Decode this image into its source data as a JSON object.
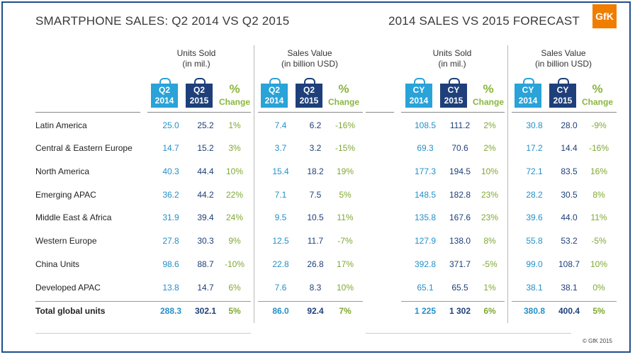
{
  "titles": {
    "left": "SMARTPHONE SALES: Q2 2014 VS Q2 2015",
    "right": "2014 SALES VS 2015 FORECAST"
  },
  "logo": "GfK",
  "copyright": "© GfK 2015",
  "groups": [
    {
      "line1": "Units Sold",
      "line2": "(in mil.)"
    },
    {
      "line1": "Sales Value",
      "line2": "(in billion USD)"
    },
    {
      "line1": "Units Sold",
      "line2": "(in mil.)"
    },
    {
      "line1": "Sales Value",
      "line2": "(in billion USD)"
    }
  ],
  "bags": [
    {
      "top": "Q2",
      "bottom": "2014"
    },
    {
      "top": "Q2",
      "bottom": "2015"
    },
    {
      "top": "Q2",
      "bottom": "2014"
    },
    {
      "top": "Q2",
      "bottom": "2015"
    },
    {
      "top": "CY",
      "bottom": "2014"
    },
    {
      "top": "CY",
      "bottom": "2015"
    },
    {
      "top": "CY",
      "bottom": "2014"
    },
    {
      "top": "CY",
      "bottom": "2015"
    }
  ],
  "pct_header": {
    "symbol": "%",
    "label": "Change"
  },
  "colors": {
    "light_blue": "#29a3d8",
    "dark_blue": "#1e3f7a",
    "green": "#8ab63f",
    "border": "#1f4e8c",
    "logo": "#f07d00"
  },
  "chart_data": {
    "type": "table",
    "title": "SMARTPHONE SALES: Q2 2014 VS Q2 2015 / 2014 SALES VS 2015 FORECAST",
    "columns": [
      "Units Sold Q2 2014",
      "Units Sold Q2 2015",
      "Units % Change",
      "Sales Value Q2 2014",
      "Sales Value Q2 2015",
      "Sales Value % Change",
      "Units Sold CY 2014",
      "Units Sold CY 2015",
      "Units % Change",
      "Sales Value CY 2014",
      "Sales Value CY 2015",
      "Sales Value % Change"
    ],
    "rows": [
      {
        "region": "Latin America",
        "values": [
          "25.0",
          "25.2",
          "1%",
          "7.4",
          "6.2",
          "-16%",
          "108.5",
          "111.2",
          "2%",
          "30.8",
          "28.0",
          "-9%"
        ]
      },
      {
        "region": "Central & Eastern Europe",
        "values": [
          "14.7",
          "15.2",
          "3%",
          "3.7",
          "3.2",
          "-15%",
          "69.3",
          "70.6",
          "2%",
          "17.2",
          "14.4",
          "-16%"
        ]
      },
      {
        "region": "North America",
        "values": [
          "40.3",
          "44.4",
          "10%",
          "15.4",
          "18.2",
          "19%",
          "177.3",
          "194.5",
          "10%",
          "72.1",
          "83.5",
          "16%"
        ]
      },
      {
        "region": "Emerging APAC",
        "values": [
          "36.2",
          "44.2",
          "22%",
          "7.1",
          "7.5",
          "5%",
          "148.5",
          "182.8",
          "23%",
          "28.2",
          "30.5",
          "8%"
        ]
      },
      {
        "region": "Middle East & Africa",
        "values": [
          "31.9",
          "39.4",
          "24%",
          "9.5",
          "10.5",
          "11%",
          "135.8",
          "167.6",
          "23%",
          "39.6",
          "44.0",
          "11%"
        ]
      },
      {
        "region": "Western Europe",
        "values": [
          "27.8",
          "30.3",
          "9%",
          "12.5",
          "11.7",
          "-7%",
          "127.9",
          "138.0",
          "8%",
          "55.8",
          "53.2",
          "-5%"
        ]
      },
      {
        "region": "China Units",
        "values": [
          "98.6",
          "88.7",
          "-10%",
          "22.8",
          "26.8",
          "17%",
          "392.8",
          "371.7",
          "-5%",
          "99.0",
          "108.7",
          "10%"
        ]
      },
      {
        "region": "Developed APAC",
        "values": [
          "13.8",
          "14.7",
          "6%",
          "7.6",
          "8.3",
          "10%",
          "65.1",
          "65.5",
          "1%",
          "38.1",
          "38.1",
          "0%"
        ]
      }
    ],
    "total": {
      "region": "Total global units",
      "values": [
        "288.3",
        "302.1",
        "5%",
        "86.0",
        "92.4",
        "7%",
        "1 225",
        "1 302",
        "6%",
        "380.8",
        "400.4",
        "5%"
      ]
    }
  }
}
